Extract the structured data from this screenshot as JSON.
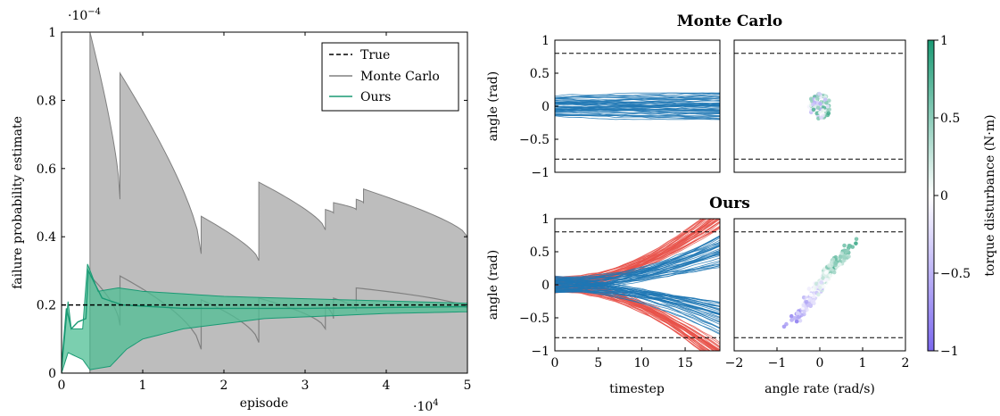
{
  "chart_data": [
    {
      "type": "area",
      "xlabel": "episode",
      "ylabel": "failure probability estimate",
      "x_multiplier_label": "·10^4",
      "y_multiplier_label": "·10^−4",
      "xlim": [
        0,
        50000
      ],
      "ylim": [
        0,
        1
      ],
      "x_ticks": [
        0,
        1,
        2,
        3,
        4,
        5
      ],
      "y_ticks": [
        0,
        0.2,
        0.4,
        0.6,
        0.8,
        1
      ],
      "y_tick_labels": [
        "0",
        "0.2",
        "0.4",
        "0.6",
        "0.8",
        "1"
      ],
      "legend_position": "top-right",
      "legend": [
        {
          "name": "True",
          "style": "dashed",
          "color": "#000000"
        },
        {
          "name": "Monte Carlo",
          "style": "solid",
          "color": "#808080"
        },
        {
          "name": "Ours",
          "style": "solid",
          "color": "#1a9a74"
        }
      ],
      "true_value": 0.2,
      "monte_carlo": {
        "color": "#808080",
        "fill": "#bdbdbd",
        "jump_episodes": [
          3500,
          7200,
          17200,
          24300,
          32500,
          33500,
          36300,
          37200
        ],
        "point_estimate": [
          [
            0,
            0
          ],
          [
            3500,
            0
          ],
          [
            3500,
            0.285
          ],
          [
            7200,
            0.14
          ],
          [
            7200,
            0.285
          ],
          [
            17200,
            0.07
          ],
          [
            17200,
            0.215
          ],
          [
            24300,
            0.09
          ],
          [
            24300,
            0.22
          ],
          [
            32500,
            0.13
          ],
          [
            32500,
            0.2
          ],
          [
            33500,
            0.16
          ],
          [
            33500,
            0.22
          ],
          [
            36300,
            0.185
          ],
          [
            36300,
            0.25
          ],
          [
            50000,
            0.19
          ]
        ],
        "upper_bound": [
          [
            3500,
            1.0
          ],
          [
            7200,
            0.51
          ],
          [
            7200,
            0.88
          ],
          [
            17200,
            0.35
          ],
          [
            17200,
            0.46
          ],
          [
            24300,
            0.33
          ],
          [
            24300,
            0.56
          ],
          [
            32500,
            0.42
          ],
          [
            32500,
            0.48
          ],
          [
            33500,
            0.47
          ],
          [
            33500,
            0.5
          ],
          [
            36300,
            0.48
          ],
          [
            36300,
            0.51
          ],
          [
            37200,
            0.5
          ],
          [
            37200,
            0.54
          ],
          [
            50000,
            0.4
          ]
        ],
        "lower_bound": 0
      },
      "ours": {
        "color": "#1a9a74",
        "fill": "#4fbf94",
        "point_estimate": [
          [
            0,
            0.02
          ],
          [
            600,
            0.19
          ],
          [
            1200,
            0.13
          ],
          [
            2000,
            0.15
          ],
          [
            3000,
            0.16
          ],
          [
            3300,
            0.3
          ],
          [
            5000,
            0.22
          ],
          [
            7500,
            0.2
          ],
          [
            15000,
            0.19
          ],
          [
            30000,
            0.19
          ],
          [
            50000,
            0.195
          ]
        ],
        "upper_bound": [
          [
            0,
            0.01
          ],
          [
            800,
            0.21
          ],
          [
            1200,
            0.13
          ],
          [
            2600,
            0.13
          ],
          [
            3200,
            0.32
          ],
          [
            4500,
            0.24
          ],
          [
            7000,
            0.25
          ],
          [
            10000,
            0.24
          ],
          [
            20000,
            0.225
          ],
          [
            35000,
            0.215
          ],
          [
            50000,
            0.205
          ]
        ],
        "lower_bound": [
          [
            0,
            0
          ],
          [
            800,
            0.06
          ],
          [
            2600,
            0.04
          ],
          [
            3500,
            0.01
          ],
          [
            6000,
            0.02
          ],
          [
            8000,
            0.07
          ],
          [
            10000,
            0.1
          ],
          [
            15000,
            0.13
          ],
          [
            25000,
            0.16
          ],
          [
            40000,
            0.175
          ],
          [
            50000,
            0.18
          ]
        ]
      }
    },
    {
      "type": "line",
      "title": "Monte Carlo",
      "ylabel": "angle (rad)",
      "xlim": [
        0,
        19
      ],
      "ylim": [
        -1,
        1
      ],
      "y_ticks": [
        -1,
        -0.5,
        0,
        0.5,
        1
      ],
      "y_tick_labels": [
        "−1",
        "−0.5",
        "0",
        "0.5",
        "1"
      ],
      "threshold_lines": [
        0.8,
        -0.8
      ],
      "series_color": "#1f77b4",
      "trajectory_band": [
        -0.2,
        0.2
      ],
      "trajectory_count": 50
    },
    {
      "type": "scatter",
      "title": "Monte Carlo",
      "xlim": [
        -2,
        2
      ],
      "ylim": [
        -1,
        1
      ],
      "threshold_lines": [
        0.8,
        -0.8
      ],
      "cluster_center": [
        0.0,
        0.0
      ],
      "cluster_radius": [
        0.25,
        0.2
      ],
      "point_count": 90
    },
    {
      "type": "line",
      "title": "Ours",
      "xlabel": "timestep",
      "ylabel": "angle (rad)",
      "xlim": [
        0,
        19
      ],
      "ylim": [
        -1,
        1
      ],
      "x_ticks": [
        0,
        5,
        10,
        15
      ],
      "y_ticks": [
        -1,
        -0.5,
        0,
        0.5,
        1
      ],
      "y_tick_labels": [
        "−1",
        "−0.5",
        "0",
        "0.5",
        "1"
      ],
      "threshold_lines": [
        0.8,
        -0.8
      ],
      "failure_color": "#e8524a",
      "nominal_color": "#1f77b4",
      "failure_count": 70,
      "nominal_count": 70
    },
    {
      "type": "scatter",
      "title": "Ours",
      "xlabel": "angle rate (rad/s)",
      "xlim": [
        -2,
        2
      ],
      "ylim": [
        -1,
        1
      ],
      "x_ticks": [
        -2,
        -1,
        0,
        1,
        2
      ],
      "x_tick_labels": [
        "−2",
        "−1",
        "0",
        "1",
        "2"
      ],
      "threshold_lines": [
        0.8,
        -0.8
      ],
      "point_count": 320
    }
  ],
  "colorbar": {
    "label": "torque disturbance (N·m)",
    "range": [
      -1,
      1
    ],
    "ticks": [
      -1,
      -0.5,
      0,
      0.5,
      1
    ],
    "tick_labels": [
      "−1",
      "−0.5",
      "0",
      "0.5",
      "1"
    ],
    "colors": [
      "#7b68ee",
      "#ffffff",
      "#1a9a74"
    ]
  }
}
